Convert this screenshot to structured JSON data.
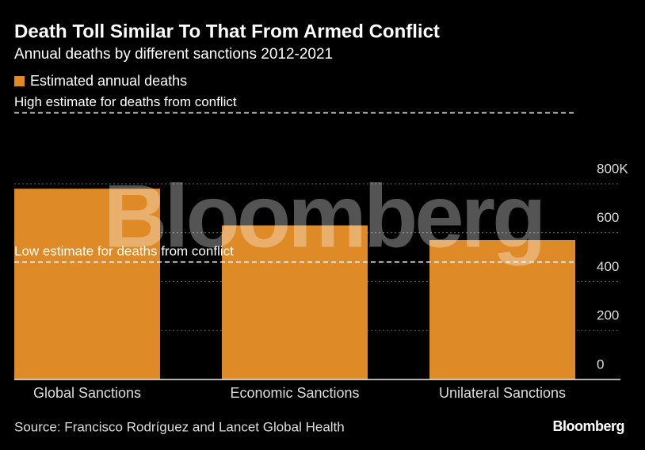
{
  "chart_data": {
    "type": "bar",
    "title": "Death Toll Similar To That From Armed Conflict",
    "subtitle": "Annual deaths by different sanctions 2012-2021",
    "series": [
      {
        "name": "Estimated annual deaths",
        "color": "#de8a26",
        "values": [
          780,
          630,
          570
        ]
      }
    ],
    "categories": [
      "Global Sanctions",
      "Economic Sanctions",
      "Unilateral Sanctions"
    ],
    "ylim": [
      0,
      800
    ],
    "yticks": [
      0,
      200,
      400,
      600,
      {
        "value": 800,
        "label": "800K"
      }
    ],
    "grid": true,
    "reference_lines": [
      {
        "label": "High estimate for deaths from conflict",
        "value": 1090
      },
      {
        "label": "Low estimate for deaths from conflict",
        "value": 480
      }
    ],
    "watermark": "Bloomberg",
    "source": "Source: Francisco Rodríguez and Lancet Global Health",
    "logo": "Bloomberg"
  }
}
